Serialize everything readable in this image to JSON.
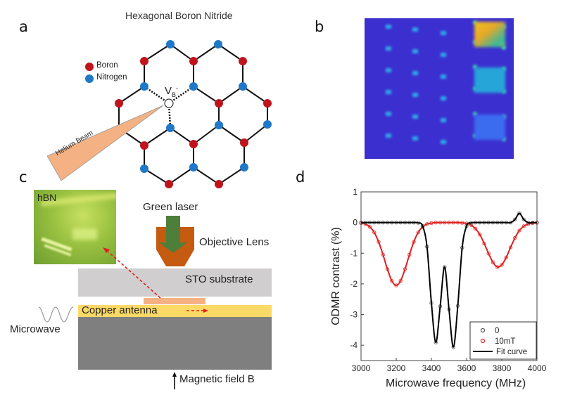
{
  "panels": {
    "a": "a",
    "b": "b",
    "c": "c",
    "d": "d"
  },
  "panel_a": {
    "title": "Hexagonal Boron Nitride",
    "legend": [
      {
        "label": "Boron",
        "color": "#c0141c"
      },
      {
        "label": "Nitrogen",
        "color": "#1f78c8"
      }
    ],
    "vacancy_label": "V",
    "vacancy_sub": "B",
    "vacancy_sup": "-",
    "beam_label": "Helium Beam",
    "beam_color": "#f4b183"
  },
  "panel_c": {
    "inset_label": "hBN",
    "laser_label": "Green laser",
    "lens_label": "Objective Lens",
    "substrate_label": "STO substrate",
    "antenna_label": "Copper antenna",
    "microwave_label": "Microwave",
    "field_label": "Magnetic field B",
    "colors": {
      "laser": "#4e7f3a",
      "lens": "#c55a11",
      "substrate": "#d0cece",
      "antenna": "#ffd966",
      "pad": "#f4b183",
      "base": "#7f7f7f",
      "arrow": "#e02020"
    }
  },
  "chart_data": {
    "type": "scatter",
    "xlabel": "Microwave frequency (MHz)",
    "ylabel": "ODMR contrast (%)",
    "xlim": [
      3000,
      4000
    ],
    "ylim": [
      -4.5,
      1
    ],
    "xticks": [
      "3000",
      "3200",
      "3400",
      "3600",
      "3800",
      "4000"
    ],
    "yticks": [
      "1",
      "0",
      "-1",
      "-2",
      "-3",
      "-4"
    ],
    "legend_placement": "bottom-right",
    "x": [
      3000,
      3025,
      3050,
      3075,
      3100,
      3125,
      3150,
      3175,
      3200,
      3225,
      3250,
      3275,
      3300,
      3325,
      3350,
      3375,
      3400,
      3425,
      3450,
      3475,
      3500,
      3525,
      3550,
      3575,
      3600,
      3625,
      3650,
      3675,
      3700,
      3725,
      3750,
      3775,
      3800,
      3825,
      3850,
      3875,
      3900,
      3925,
      3950,
      3975,
      4000
    ],
    "series": [
      {
        "name": "0",
        "color": "#555555",
        "marker": "circle",
        "values": [
          0,
          0,
          0,
          0,
          0,
          0,
          0,
          0,
          0,
          0,
          0,
          0,
          0,
          -0.01,
          -0.11,
          -0.79,
          -2.62,
          -3.91,
          -2.73,
          -1.45,
          -2.83,
          -4.06,
          -2.72,
          -0.82,
          -0.11,
          -0.01,
          0,
          0,
          0,
          0,
          0,
          0,
          0,
          0,
          0,
          0.1,
          0.3,
          0.1,
          0,
          0,
          0
        ]
      },
      {
        "name": "10mT",
        "color": "#e02020",
        "marker": "circle",
        "values": [
          -0.02,
          -0.05,
          -0.14,
          -0.32,
          -0.63,
          -1.05,
          -1.52,
          -1.9,
          -2.05,
          -1.9,
          -1.52,
          -1.05,
          -0.63,
          -0.32,
          -0.14,
          -0.05,
          -0.02,
          0,
          0,
          0,
          0,
          0,
          0,
          -0.01,
          -0.03,
          -0.08,
          -0.2,
          -0.39,
          -0.68,
          -1.01,
          -1.3,
          -1.45,
          -1.38,
          -1.14,
          -0.81,
          -0.5,
          -0.26,
          -0.12,
          -0.05,
          -0.02,
          -0.01
        ]
      },
      {
        "name": "Fit curve",
        "color": "#000000",
        "marker": "line"
      }
    ]
  }
}
